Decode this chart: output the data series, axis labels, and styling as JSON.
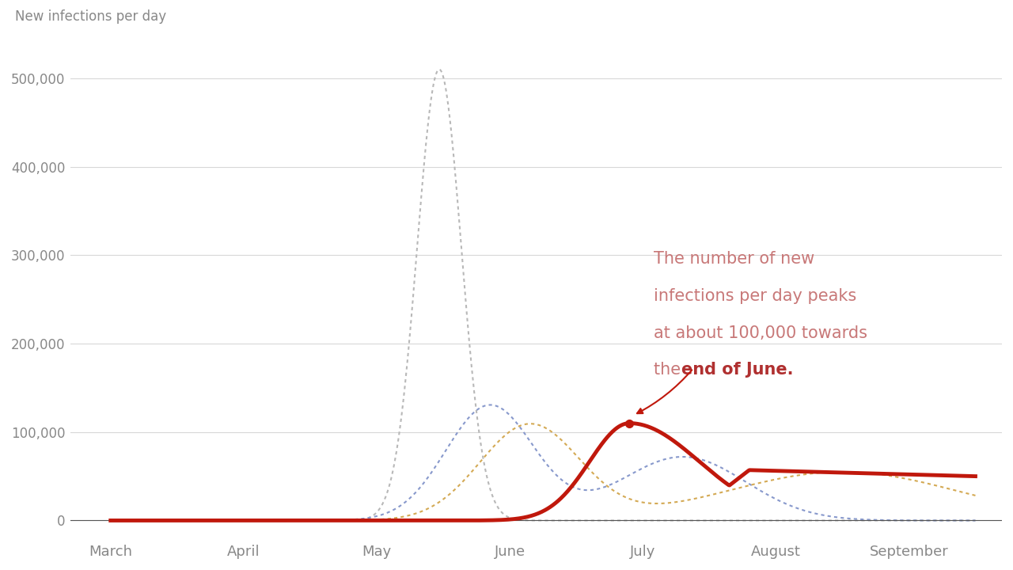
{
  "ylabel": "New infections per day",
  "background_color": "#ffffff",
  "yticks": [
    0,
    100000,
    200000,
    300000,
    400000,
    500000
  ],
  "ytick_labels": [
    "0",
    "100,000",
    "200,000",
    "300,000",
    "400,000",
    "500,000"
  ],
  "xtick_labels": [
    "March",
    "April",
    "May",
    "June",
    "July",
    "August",
    "September"
  ],
  "annotation_color_bold": "#b03030",
  "annotation_color_light": "#c87878",
  "red_line_color": "#c0180c",
  "gray_dotted_color": "#b8b8b8",
  "blue_dotted_color": "#8899cc",
  "orange_dotted_color": "#d4aa55",
  "grid_color": "#d8d8d8",
  "tick_color": "#888888",
  "xlabel_color": "#888888"
}
